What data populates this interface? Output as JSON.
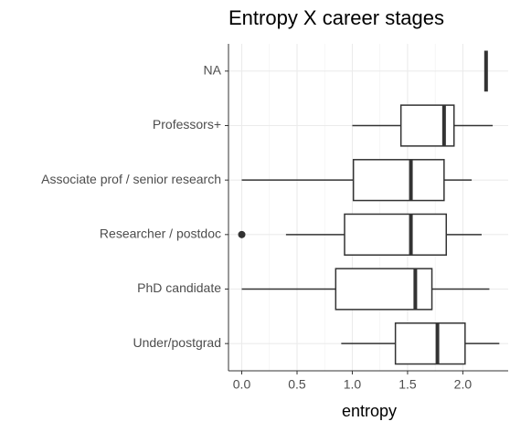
{
  "chart_data": {
    "type": "boxplot",
    "title": "Entropy X career stages",
    "x_label": "entropy",
    "categories": [
      "NA",
      "Professors+",
      "Associate prof / senior research",
      "Researcher / postdoc",
      "PhD candidate",
      "Under/postgrad"
    ],
    "min": [
      2.21,
      1.0,
      0,
      0.4,
      0,
      0.9
    ],
    "q1": [
      2.21,
      1.44,
      1.01,
      0.93,
      0.85,
      1.39
    ],
    "median": [
      2.21,
      1.83,
      1.53,
      1.53,
      1.57,
      1.77
    ],
    "q3": [
      2.21,
      1.92,
      1.83,
      1.85,
      1.72,
      2.02
    ],
    "max": [
      2.21,
      2.27,
      2.08,
      2.17,
      2.24,
      2.33
    ],
    "outliers": [
      [],
      [],
      [],
      [
        0
      ],
      [],
      []
    ],
    "xlim": [
      -0.12,
      2.41
    ],
    "xticks": [
      {
        "value": 0,
        "label": "0.0"
      },
      0.5,
      {
        "value": 1,
        "label": "1.0"
      },
      1.5,
      {
        "value": 2,
        "label": "2.0"
      }
    ],
    "grid": true,
    "color": "#333333"
  }
}
